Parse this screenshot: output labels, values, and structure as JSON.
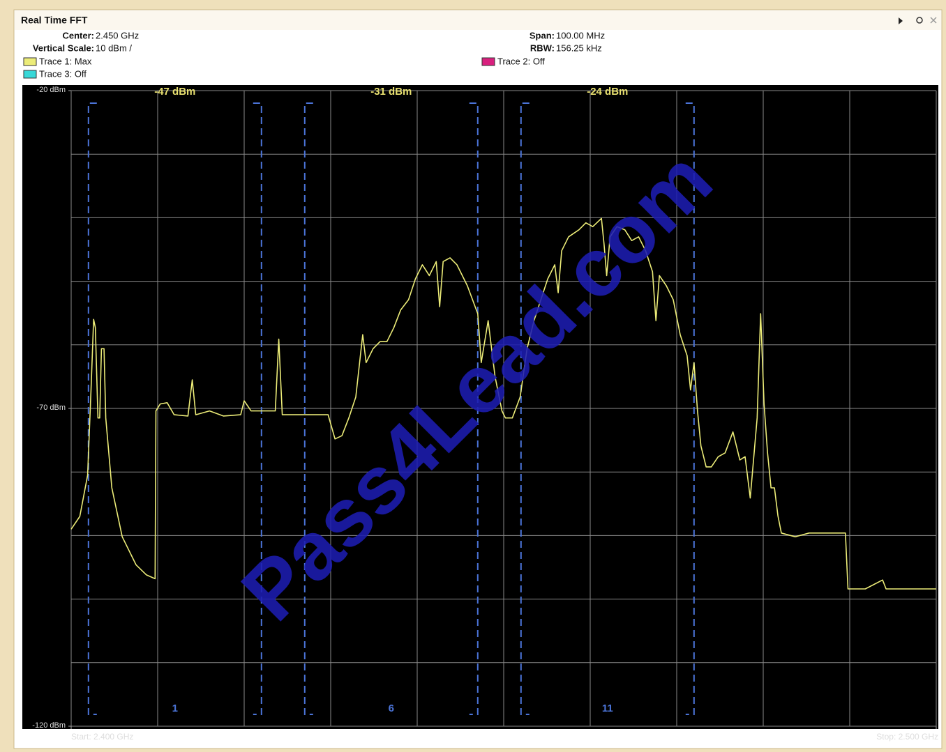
{
  "window": {
    "title": "Real Time FFT"
  },
  "settings": [
    {
      "label": "Center:",
      "value": "2.450 GHz"
    },
    {
      "label": "Vertical Scale:",
      "value": "10 dBm /"
    },
    {
      "label": "Span:",
      "value": "100.00 MHz"
    },
    {
      "label": "RBW:",
      "value": "156.25 kHz"
    }
  ],
  "legend": [
    {
      "name": "Trace 3: Off",
      "color": "#38d8d8"
    },
    {
      "name": "Trace 2: Off",
      "color": "#d8207e"
    }
  ],
  "watermark": "Pass4Lead.com",
  "chart_data": {
    "type": "line",
    "xlim": [
      2.4,
      2.5
    ],
    "ylim": [
      -120,
      -20
    ],
    "xticks": [
      {
        "value": 2.4,
        "label": "Start: 2.400 GHz"
      },
      {
        "value": 2.5,
        "label": "Stop: 2.500 GHz"
      }
    ],
    "yticks": [
      {
        "value": -20,
        "label": "-20 dBm"
      },
      {
        "value": -70,
        "label": "-70 dBm"
      },
      {
        "value": -120,
        "label": "-120 dBm"
      }
    ],
    "grid": {
      "x_divisions": 10,
      "y_divisions": 10
    },
    "channels": [
      {
        "label": "1",
        "power": "-47 dBm",
        "start": 2.402,
        "end": 2.422
      },
      {
        "label": "6",
        "power": "-31 dBm",
        "start": 2.427,
        "end": 2.447
      },
      {
        "label": "11",
        "power": "-24 dBm",
        "start": 2.452,
        "end": 2.472
      }
    ],
    "series": [
      {
        "name": "Trace 1: Max",
        "color": "#ecec78",
        "x": [
          2.4,
          2.401,
          2.4019,
          2.4023,
          2.4026,
          2.4028,
          2.4031,
          2.4033,
          2.4035,
          2.4038,
          2.404,
          2.4047,
          2.4059,
          2.4075,
          2.4087,
          2.4097,
          2.4098,
          2.4103,
          2.4111,
          2.4119,
          2.4135,
          2.414,
          2.4144,
          2.416,
          2.4176,
          2.4196,
          2.42,
          2.4208,
          2.4236,
          2.424,
          2.4244,
          2.4297,
          2.4305,
          2.4313,
          2.4321,
          2.4329,
          2.4337,
          2.4341,
          2.4349,
          2.4357,
          2.4365,
          2.4373,
          2.4381,
          2.439,
          2.4398,
          2.4406,
          2.4414,
          2.4422,
          2.4426,
          2.443,
          2.4438,
          2.4446,
          2.4458,
          2.447,
          2.4474,
          2.4482,
          2.449,
          2.4498,
          2.4502,
          2.451,
          2.4519,
          2.4527,
          2.4535,
          2.4543,
          2.4551,
          2.4559,
          2.4563,
          2.4567,
          2.4575,
          2.4587,
          2.4595,
          2.4603,
          2.4613,
          2.4616,
          2.4619,
          2.4623,
          2.4631,
          2.464,
          2.4648,
          2.4656,
          2.4664,
          2.4672,
          2.4676,
          2.468,
          2.4688,
          2.4696,
          2.4704,
          2.4712,
          2.4716,
          2.472,
          2.4724,
          2.4728,
          2.4734,
          2.474,
          2.4748,
          2.4756,
          2.4765,
          2.4773,
          2.4779,
          2.4785,
          2.4793,
          2.4797,
          2.4801,
          2.4805,
          2.4809,
          2.4813,
          2.4817,
          2.4821,
          2.4837,
          2.4853,
          2.4869,
          2.4895,
          2.4898,
          2.4918,
          2.4938,
          2.4942,
          2.5
        ],
        "values": [
          -89,
          -87,
          -80.5,
          -67,
          -56,
          -57.3,
          -71.5,
          -71.5,
          -60.6,
          -60.6,
          -71.5,
          -82.5,
          -90.2,
          -94.6,
          -96.2,
          -96.8,
          -70.4,
          -69.3,
          -69.1,
          -71,
          -71.2,
          -65.5,
          -71,
          -70.4,
          -71.2,
          -71,
          -68.8,
          -70.4,
          -70.4,
          -59.1,
          -71,
          -71,
          -74.8,
          -74.3,
          -71.5,
          -68.2,
          -58.4,
          -62.8,
          -60.6,
          -59.5,
          -59.5,
          -57.3,
          -54.5,
          -52.9,
          -49.6,
          -47.4,
          -49.1,
          -46.9,
          -54,
          -46.9,
          -46.3,
          -47.4,
          -50.7,
          -55.1,
          -62.8,
          -56.2,
          -65,
          -70.4,
          -71.5,
          -71.5,
          -68.2,
          -60.6,
          -56.2,
          -52.9,
          -49.6,
          -47.4,
          -51.8,
          -45.2,
          -43,
          -41.9,
          -40.8,
          -41.4,
          -40.1,
          -44.1,
          -49.1,
          -43,
          -41.4,
          -41.9,
          -43.6,
          -43,
          -45.2,
          -48.5,
          -56.2,
          -49.1,
          -50.7,
          -52.9,
          -58.4,
          -61.7,
          -67.1,
          -62.8,
          -70.4,
          -75.9,
          -79.2,
          -79.2,
          -77.6,
          -77,
          -73.7,
          -78.1,
          -77.6,
          -84.1,
          -71.5,
          -55.1,
          -69.3,
          -77,
          -82.5,
          -82.5,
          -86.9,
          -89.6,
          -90.2,
          -89.6,
          -89.6,
          -89.6,
          -98.4,
          -98.4,
          -97,
          -98.4,
          -98.4
        ]
      }
    ]
  }
}
